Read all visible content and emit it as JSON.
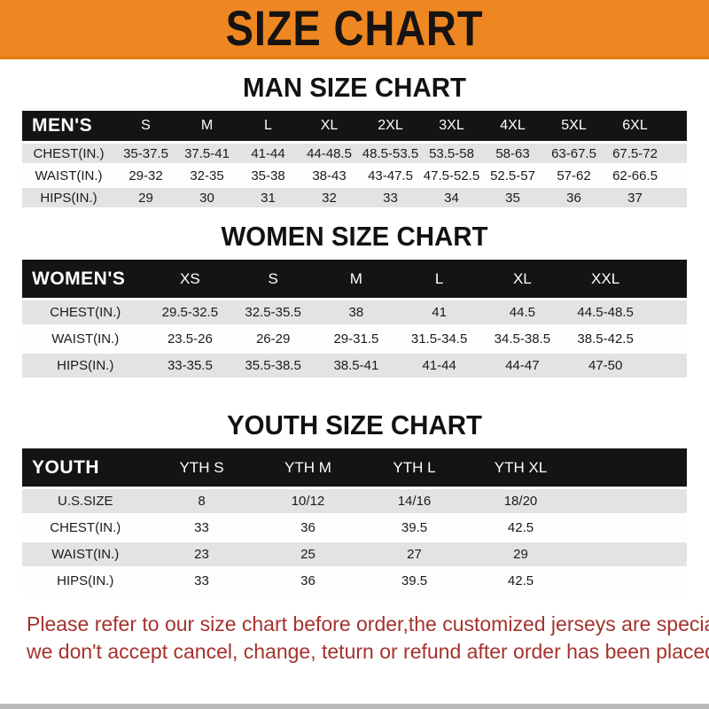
{
  "banner": {
    "title": "SIZE CHART"
  },
  "tables": [
    {
      "heading": "MAN SIZE CHART",
      "corner_label": "MEN'S",
      "sizes": [
        "S",
        "M",
        "L",
        "XL",
        "2XL",
        "3XL",
        "4XL",
        "5XL",
        "6XL"
      ],
      "rows": [
        {
          "label": "CHEST(IN.)",
          "values": [
            "35-37.5",
            "37.5-41",
            "41-44",
            "44-48.5",
            "48.5-53.5",
            "53.5-58",
            "58-63",
            "63-67.5",
            "67.5-72"
          ]
        },
        {
          "label": "WAIST(IN.)",
          "values": [
            "29-32",
            "32-35",
            "35-38",
            "38-43",
            "43-47.5",
            "47.5-52.5",
            "52.5-57",
            "57-62",
            "62-66.5"
          ]
        },
        {
          "label": "HIPS(IN.)",
          "values": [
            "29",
            "30",
            "31",
            "32",
            "33",
            "34",
            "35",
            "36",
            "37"
          ]
        }
      ]
    },
    {
      "heading": "WOMEN SIZE CHART",
      "corner_label": "WOMEN'S",
      "sizes": [
        "XS",
        "S",
        "M",
        "L",
        "XL",
        "XXL"
      ],
      "rows": [
        {
          "label": "CHEST(IN.)",
          "values": [
            "29.5-32.5",
            "32.5-35.5",
            "38",
            "41",
            "44.5",
            "44.5-48.5"
          ]
        },
        {
          "label": "WAIST(IN.)",
          "values": [
            "23.5-26",
            "26-29",
            "29-31.5",
            "31.5-34.5",
            "34.5-38.5",
            "38.5-42.5"
          ]
        },
        {
          "label": "HIPS(IN.)",
          "values": [
            "33-35.5",
            "35.5-38.5",
            "38.5-41",
            "41-44",
            "44-47",
            "47-50"
          ]
        }
      ]
    },
    {
      "heading": "YOUTH SIZE CHART",
      "corner_label": "YOUTH",
      "sizes": [
        "YTH S",
        "YTH M",
        "YTH L",
        "YTH XL"
      ],
      "rows": [
        {
          "label": "U.S.SIZE",
          "values": [
            "8",
            "10/12",
            "14/16",
            "18/20"
          ]
        },
        {
          "label": "CHEST(IN.)",
          "values": [
            "33",
            "36",
            "39.5",
            "42.5"
          ]
        },
        {
          "label": "WAIST(IN.)",
          "values": [
            "23",
            "25",
            "27",
            "29"
          ]
        },
        {
          "label": "HIPS(IN.)",
          "values": [
            "33",
            "36",
            "39.5",
            "42.5"
          ]
        }
      ]
    }
  ],
  "footer": {
    "line1": "Please refer to our size chart before order,the customized jerseys are special products,",
    "line2": "we don't accept cancel, change, teturn or refund after order has been placed!"
  },
  "colors": {
    "banner_bg": "#ee8722",
    "header_bar": "#141414",
    "row_alt": "#e3e3e3",
    "footer_text": "#a5322c"
  }
}
